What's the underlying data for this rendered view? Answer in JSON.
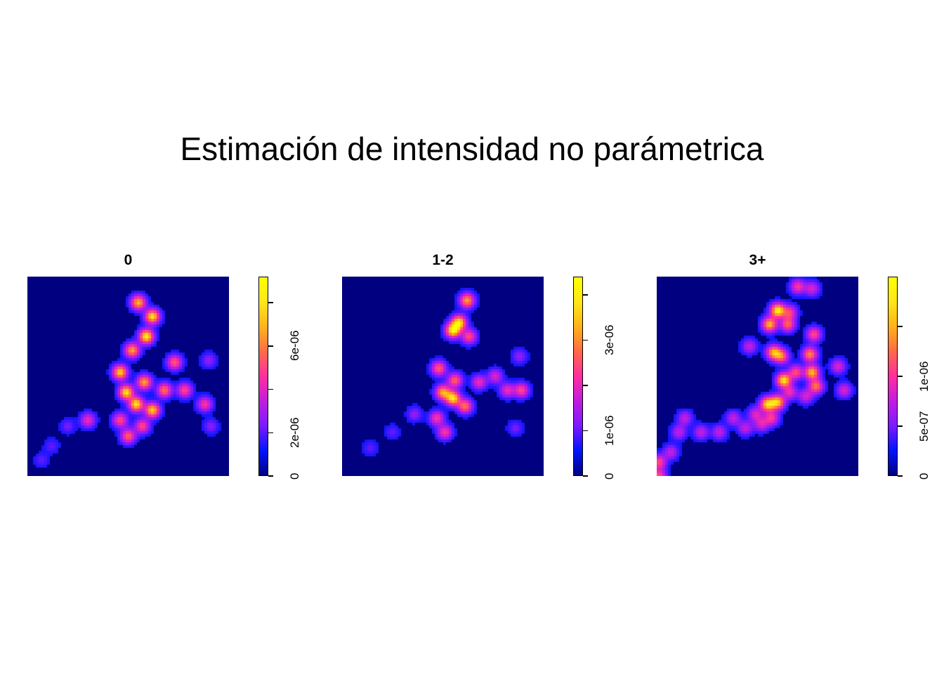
{
  "chart_data": {
    "type": "heatmap",
    "title": "Estimación de intensidad no parámetrica",
    "colormap": [
      "#000080",
      "#0015ff",
      "#7a1bff",
      "#c11ddf",
      "#ff2ea0",
      "#ff6a48",
      "#ffb21a",
      "#ffe61a",
      "#ffff00"
    ],
    "panels": [
      {
        "name": "0",
        "zlim": [
          0,
          9.2e-06
        ],
        "ticks": [
          {
            "value": 0,
            "label": "0"
          },
          {
            "value": 2e-06,
            "label": "2e-06"
          },
          {
            "value": 4e-06,
            "label": ""
          },
          {
            "value": 6e-06,
            "label": "6e-06"
          },
          {
            "value": 8e-06,
            "label": ""
          }
        ],
        "hotspots": [
          {
            "x": 0.55,
            "y": 0.87,
            "v": 0.75
          },
          {
            "x": 0.62,
            "y": 0.8,
            "v": 0.85
          },
          {
            "x": 0.59,
            "y": 0.7,
            "v": 0.9
          },
          {
            "x": 0.52,
            "y": 0.63,
            "v": 0.7
          },
          {
            "x": 0.46,
            "y": 0.52,
            "v": 0.8
          },
          {
            "x": 0.49,
            "y": 0.42,
            "v": 0.85
          },
          {
            "x": 0.58,
            "y": 0.47,
            "v": 0.7
          },
          {
            "x": 0.54,
            "y": 0.36,
            "v": 0.85
          },
          {
            "x": 0.62,
            "y": 0.33,
            "v": 0.8
          },
          {
            "x": 0.68,
            "y": 0.43,
            "v": 0.6
          },
          {
            "x": 0.73,
            "y": 0.57,
            "v": 0.55
          },
          {
            "x": 0.78,
            "y": 0.43,
            "v": 0.5
          },
          {
            "x": 0.88,
            "y": 0.36,
            "v": 0.45
          },
          {
            "x": 0.46,
            "y": 0.28,
            "v": 0.5
          },
          {
            "x": 0.5,
            "y": 0.2,
            "v": 0.55
          },
          {
            "x": 0.57,
            "y": 0.25,
            "v": 0.5
          },
          {
            "x": 0.3,
            "y": 0.28,
            "v": 0.4
          },
          {
            "x": 0.2,
            "y": 0.25,
            "v": 0.15
          },
          {
            "x": 0.12,
            "y": 0.15,
            "v": 0.12
          },
          {
            "x": 0.07,
            "y": 0.08,
            "v": 0.12
          },
          {
            "x": 0.9,
            "y": 0.58,
            "v": 0.2
          },
          {
            "x": 0.91,
            "y": 0.25,
            "v": 0.18
          }
        ]
      },
      {
        "name": "1-2",
        "zlim": [
          0,
          4.4e-06
        ],
        "ticks": [
          {
            "value": 0,
            "label": "0"
          },
          {
            "value": 1e-06,
            "label": "1e-06"
          },
          {
            "value": 2e-06,
            "label": ""
          },
          {
            "value": 3e-06,
            "label": "3e-06"
          },
          {
            "value": 4e-06,
            "label": ""
          }
        ],
        "hotspots": [
          {
            "x": 0.62,
            "y": 0.88,
            "v": 0.7
          },
          {
            "x": 0.58,
            "y": 0.77,
            "v": 0.85
          },
          {
            "x": 0.55,
            "y": 0.73,
            "v": 0.9
          },
          {
            "x": 0.63,
            "y": 0.7,
            "v": 0.5
          },
          {
            "x": 0.48,
            "y": 0.54,
            "v": 0.55
          },
          {
            "x": 0.5,
            "y": 0.42,
            "v": 0.7
          },
          {
            "x": 0.56,
            "y": 0.48,
            "v": 0.55
          },
          {
            "x": 0.55,
            "y": 0.39,
            "v": 0.85
          },
          {
            "x": 0.61,
            "y": 0.35,
            "v": 0.6
          },
          {
            "x": 0.68,
            "y": 0.47,
            "v": 0.4
          },
          {
            "x": 0.76,
            "y": 0.5,
            "v": 0.35
          },
          {
            "x": 0.82,
            "y": 0.43,
            "v": 0.4
          },
          {
            "x": 0.89,
            "y": 0.43,
            "v": 0.5
          },
          {
            "x": 0.47,
            "y": 0.29,
            "v": 0.45
          },
          {
            "x": 0.51,
            "y": 0.22,
            "v": 0.45
          },
          {
            "x": 0.36,
            "y": 0.31,
            "v": 0.2
          },
          {
            "x": 0.25,
            "y": 0.22,
            "v": 0.12
          },
          {
            "x": 0.14,
            "y": 0.14,
            "v": 0.12
          },
          {
            "x": 0.88,
            "y": 0.6,
            "v": 0.2
          },
          {
            "x": 0.86,
            "y": 0.24,
            "v": 0.15
          }
        ]
      },
      {
        "name": "3+",
        "zlim": [
          0,
          2e-06
        ],
        "ticks": [
          {
            "value": 0,
            "label": "0"
          },
          {
            "value": 5e-07,
            "label": "5e-07"
          },
          {
            "value": 1e-06,
            "label": "1e-06"
          },
          {
            "value": 1.5e-06,
            "label": ""
          }
        ],
        "hotspots": [
          {
            "x": 0.7,
            "y": 0.95,
            "v": 0.45
          },
          {
            "x": 0.77,
            "y": 0.94,
            "v": 0.35
          },
          {
            "x": 0.6,
            "y": 0.83,
            "v": 0.9
          },
          {
            "x": 0.66,
            "y": 0.82,
            "v": 0.45
          },
          {
            "x": 0.56,
            "y": 0.76,
            "v": 0.75
          },
          {
            "x": 0.65,
            "y": 0.76,
            "v": 0.55
          },
          {
            "x": 0.78,
            "y": 0.71,
            "v": 0.5
          },
          {
            "x": 0.46,
            "y": 0.65,
            "v": 0.3
          },
          {
            "x": 0.58,
            "y": 0.62,
            "v": 0.7
          },
          {
            "x": 0.62,
            "y": 0.6,
            "v": 0.55
          },
          {
            "x": 0.76,
            "y": 0.61,
            "v": 0.65
          },
          {
            "x": 0.69,
            "y": 0.52,
            "v": 0.5
          },
          {
            "x": 0.63,
            "y": 0.48,
            "v": 0.85
          },
          {
            "x": 0.77,
            "y": 0.52,
            "v": 0.75
          },
          {
            "x": 0.79,
            "y": 0.45,
            "v": 0.6
          },
          {
            "x": 0.9,
            "y": 0.55,
            "v": 0.35
          },
          {
            "x": 0.93,
            "y": 0.43,
            "v": 0.35
          },
          {
            "x": 0.55,
            "y": 0.36,
            "v": 0.8
          },
          {
            "x": 0.6,
            "y": 0.37,
            "v": 0.75
          },
          {
            "x": 0.66,
            "y": 0.42,
            "v": 0.4
          },
          {
            "x": 0.74,
            "y": 0.4,
            "v": 0.35
          },
          {
            "x": 0.57,
            "y": 0.29,
            "v": 0.45
          },
          {
            "x": 0.49,
            "y": 0.31,
            "v": 0.35
          },
          {
            "x": 0.38,
            "y": 0.29,
            "v": 0.3
          },
          {
            "x": 0.31,
            "y": 0.22,
            "v": 0.3
          },
          {
            "x": 0.22,
            "y": 0.22,
            "v": 0.3
          },
          {
            "x": 0.14,
            "y": 0.29,
            "v": 0.3
          },
          {
            "x": 0.11,
            "y": 0.22,
            "v": 0.3
          },
          {
            "x": 0.07,
            "y": 0.12,
            "v": 0.3
          },
          {
            "x": 0.44,
            "y": 0.24,
            "v": 0.3
          },
          {
            "x": 0.52,
            "y": 0.26,
            "v": 0.35
          },
          {
            "x": 0.01,
            "y": 0.07,
            "v": 0.5
          },
          {
            "x": 0.01,
            "y": 0.0,
            "v": 0.5
          }
        ]
      }
    ]
  }
}
